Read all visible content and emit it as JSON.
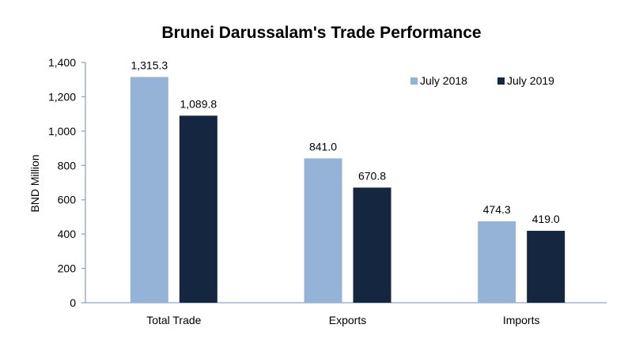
{
  "chart_data": {
    "type": "bar",
    "title": "Brunei Darussalam's Trade Performance",
    "xlabel": "",
    "ylabel": "BND Million",
    "ylim": [
      0,
      1400
    ],
    "yticks": [
      0,
      200,
      400,
      600,
      800,
      1000,
      1200,
      1400
    ],
    "ytick_labels": [
      "0",
      "200",
      "400",
      "600",
      "800",
      "1,000",
      "1,200",
      "1,400"
    ],
    "categories": [
      "Total Trade",
      "Exports",
      "Imports"
    ],
    "series": [
      {
        "name": "July 2018",
        "color": "#95b3d7",
        "values": [
          1315.3,
          841.0,
          474.3
        ],
        "labels": [
          "1,315.3",
          "841.0",
          "474.3"
        ]
      },
      {
        "name": "July 2019",
        "color": "#142640",
        "values": [
          1089.8,
          670.8,
          419.0
        ],
        "labels": [
          "1,089.8",
          "670.8",
          "419.0"
        ]
      }
    ],
    "grid": false,
    "legend": "top-right"
  }
}
